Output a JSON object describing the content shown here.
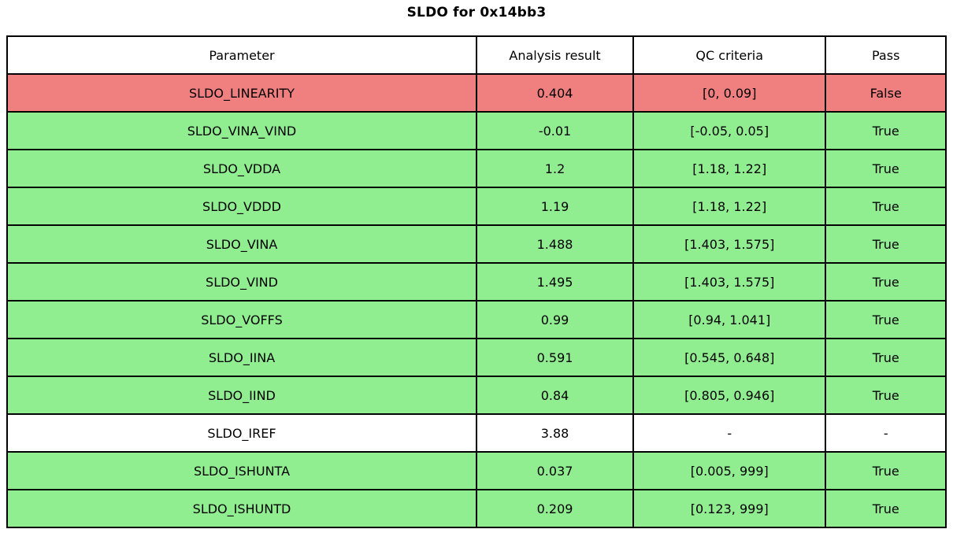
{
  "title": "SLDO for 0x14bb3",
  "colors": {
    "fail_bg": "#f08080",
    "pass_bg": "#90ee90",
    "none_bg": "#ffffff",
    "border": "#000000"
  },
  "table": {
    "columns": [
      "Parameter",
      "Analysis result",
      "QC criteria",
      "Pass"
    ],
    "rows": [
      {
        "parameter": "SLDO_LINEARITY",
        "analysis_result": "0.404",
        "qc_criteria": "[0, 0.09]",
        "pass": "False",
        "status": "fail"
      },
      {
        "parameter": "SLDO_VINA_VIND",
        "analysis_result": "-0.01",
        "qc_criteria": "[-0.05, 0.05]",
        "pass": "True",
        "status": "pass"
      },
      {
        "parameter": "SLDO_VDDA",
        "analysis_result": "1.2",
        "qc_criteria": "[1.18, 1.22]",
        "pass": "True",
        "status": "pass"
      },
      {
        "parameter": "SLDO_VDDD",
        "analysis_result": "1.19",
        "qc_criteria": "[1.18, 1.22]",
        "pass": "True",
        "status": "pass"
      },
      {
        "parameter": "SLDO_VINA",
        "analysis_result": "1.488",
        "qc_criteria": "[1.403, 1.575]",
        "pass": "True",
        "status": "pass"
      },
      {
        "parameter": "SLDO_VIND",
        "analysis_result": "1.495",
        "qc_criteria": "[1.403, 1.575]",
        "pass": "True",
        "status": "pass"
      },
      {
        "parameter": "SLDO_VOFFS",
        "analysis_result": "0.99",
        "qc_criteria": "[0.94, 1.041]",
        "pass": "True",
        "status": "pass"
      },
      {
        "parameter": "SLDO_IINA",
        "analysis_result": "0.591",
        "qc_criteria": "[0.545, 0.648]",
        "pass": "True",
        "status": "pass"
      },
      {
        "parameter": "SLDO_IIND",
        "analysis_result": "0.84",
        "qc_criteria": "[0.805, 0.946]",
        "pass": "True",
        "status": "pass"
      },
      {
        "parameter": "SLDO_IREF",
        "analysis_result": "3.88",
        "qc_criteria": "-",
        "pass": "-",
        "status": "none"
      },
      {
        "parameter": "SLDO_ISHUNTA",
        "analysis_result": "0.037",
        "qc_criteria": "[0.005, 999]",
        "pass": "True",
        "status": "pass"
      },
      {
        "parameter": "SLDO_ISHUNTD",
        "analysis_result": "0.209",
        "qc_criteria": "[0.123, 999]",
        "pass": "True",
        "status": "pass"
      }
    ]
  }
}
